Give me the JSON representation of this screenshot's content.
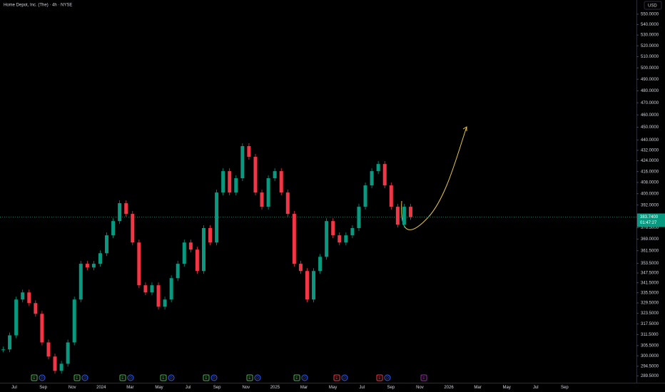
{
  "chart_data": {
    "type": "candlestick",
    "title": "Home Depot, Inc. (The) · 4h · NYSE",
    "currency": "USD",
    "log_scale": true,
    "grid": false,
    "up_color": "#089981",
    "down_color": "#f23645",
    "annotation_color": "#e8c547",
    "values": [
      303.4,
      311.1,
      331.5,
      335.7,
      329.4,
      323.2,
      307.2,
      299.6,
      292.1,
      295.8,
      307.2,
      331.5,
      353.2,
      350.9,
      353.2,
      359.9,
      371.5,
      381.0,
      393.3,
      385.9,
      366.8,
      340.0,
      335.7,
      340.0,
      327.3,
      331.5,
      344.3,
      353.2,
      366.8,
      362.2,
      348.7,
      376.3,
      366.8,
      400.8,
      416.3,
      400.8,
      411.1,
      435.2,
      427.0,
      400.8,
      390.8,
      411.1,
      416.3,
      400.8,
      385.9,
      353.2,
      348.7,
      331.5,
      348.7,
      357.6,
      381.0,
      371.5,
      366.8,
      371.5,
      376.3,
      390.8,
      405.9,
      416.3,
      421.6,
      405.9,
      390.8,
      378.6,
      390.8,
      383.74
    ],
    "last_price": {
      "value": 383.74,
      "label": "383.7400"
    },
    "countdown": "01:47:27",
    "ylim": [
      286,
      564
    ],
    "yticks": [
      {
        "value": 550,
        "label": "550.0000"
      },
      {
        "value": 540,
        "label": "540.0000"
      },
      {
        "value": 530,
        "label": "530.0000"
      },
      {
        "value": 520,
        "label": "520.0000"
      },
      {
        "value": 510,
        "label": "510.0000"
      },
      {
        "value": 500,
        "label": "500.0000"
      },
      {
        "value": 490,
        "label": "490.0000"
      },
      {
        "value": 480,
        "label": "480.0000"
      },
      {
        "value": 470,
        "label": "470.0000"
      },
      {
        "value": 460,
        "label": "460.0000"
      },
      {
        "value": 450,
        "label": "450.0000"
      },
      {
        "value": 440,
        "label": "440.0000"
      },
      {
        "value": 432,
        "label": "432.0000"
      },
      {
        "value": 424,
        "label": "424.0000"
      },
      {
        "value": 416,
        "label": "416.0000"
      },
      {
        "value": 408,
        "label": "408.0000"
      },
      {
        "value": 400,
        "label": "400.0000"
      },
      {
        "value": 392,
        "label": "392.0000"
      },
      {
        "value": 376.5,
        "label": "376.5000"
      },
      {
        "value": 369,
        "label": "369.0000"
      },
      {
        "value": 361.5,
        "label": "361.5000"
      },
      {
        "value": 353.5,
        "label": "353.5000"
      },
      {
        "value": 347.5,
        "label": "347.5000"
      },
      {
        "value": 341.5,
        "label": "341.5000"
      },
      {
        "value": 335.5,
        "label": "335.5000"
      },
      {
        "value": 329.5,
        "label": "329.5000"
      },
      {
        "value": 323.5,
        "label": "323.5000"
      },
      {
        "value": 317.5,
        "label": "317.5000"
      },
      {
        "value": 311.5,
        "label": "311.5000"
      },
      {
        "value": 305.5,
        "label": "305.5000"
      },
      {
        "value": 300,
        "label": "300.0000"
      },
      {
        "value": 294.5,
        "label": "294.5000"
      },
      {
        "value": 289.5,
        "label": "289.5000"
      }
    ],
    "xticks": [
      "Jul",
      "Sep",
      "Nov",
      "2024",
      "Mar",
      "May",
      "Jul",
      "Sep",
      "Nov",
      "2025",
      "Mar",
      "May",
      "Jul",
      "Sep",
      "Nov",
      "2026",
      "Mar",
      "May",
      "Jul",
      "Sep"
    ],
    "events": [
      {
        "label": "E",
        "color": "#4caf50"
      },
      {
        "label": "D",
        "color": "#2962ff"
      },
      {
        "label": "E",
        "color": "#4caf50"
      },
      {
        "label": "D",
        "color": "#2962ff"
      },
      {
        "label": "E",
        "color": "#4caf50"
      },
      {
        "label": "D",
        "color": "#2962ff"
      },
      {
        "label": "E",
        "color": "#4caf50"
      },
      {
        "label": "D",
        "color": "#2962ff"
      },
      {
        "label": "E",
        "color": "#4caf50"
      },
      {
        "label": "D",
        "color": "#2962ff"
      },
      {
        "label": "E",
        "color": "#4caf50"
      },
      {
        "label": "D",
        "color": "#2962ff"
      },
      {
        "label": "E",
        "color": "#4caf50"
      },
      {
        "label": "D",
        "color": "#2962ff"
      },
      {
        "label": "E",
        "color": "#f23645"
      },
      {
        "label": "D",
        "color": "#2962ff"
      },
      {
        "label": "E",
        "color": "#f23645"
      },
      {
        "label": "D",
        "color": "#2962ff"
      },
      {
        "label": "E",
        "color": "#9c27b0"
      }
    ]
  }
}
